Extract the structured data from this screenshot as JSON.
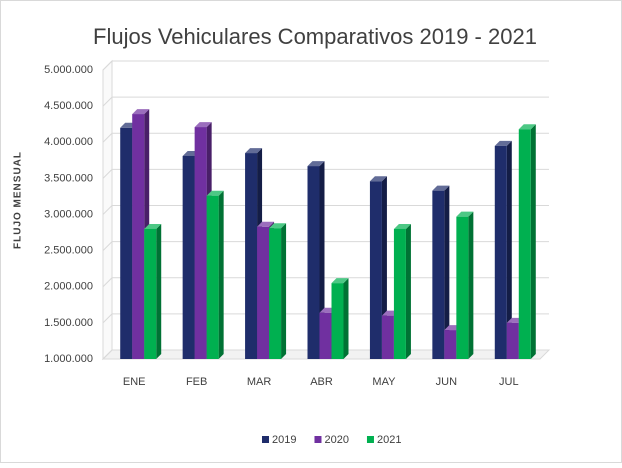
{
  "chart_data": {
    "type": "bar3d",
    "title": "Flujos Vehiculares Comparativos 2019 - 2021",
    "y_label": "FLUJO MENSUAL",
    "categories": [
      "ENE",
      "FEB",
      "MAR",
      "ABR",
      "MAY",
      "JUN",
      "JUL"
    ],
    "series": [
      {
        "name": "2019",
        "color": "#1f2d6b",
        "values": [
          4200000,
          3810000,
          3850000,
          3670000,
          3460000,
          3330000,
          3950000
        ]
      },
      {
        "name": "2020",
        "color": "#7030a0",
        "values": [
          4390000,
          4210000,
          2830000,
          1640000,
          1600000,
          1400000,
          1500000
        ]
      },
      {
        "name": "2021",
        "color": "#00b050",
        "values": [
          2800000,
          3260000,
          2810000,
          2050000,
          2800000,
          2970000,
          4180000
        ]
      }
    ],
    "ylim": [
      1000000,
      5000000
    ],
    "yticks": [
      {
        "value": 1000000,
        "label": "1.000.000"
      },
      {
        "value": 1500000,
        "label": "1.500.000"
      },
      {
        "value": 2000000,
        "label": "2.000.000"
      },
      {
        "value": 2500000,
        "label": "2.500.000"
      },
      {
        "value": 3000000,
        "label": "3.000.000"
      },
      {
        "value": 3500000,
        "label": "3.500.000"
      },
      {
        "value": 4000000,
        "label": "4.000.000"
      },
      {
        "value": 4500000,
        "label": "4.500.000"
      },
      {
        "value": 5000000,
        "label": "5.000.000"
      }
    ],
    "grid": true,
    "legend": "bottom"
  }
}
